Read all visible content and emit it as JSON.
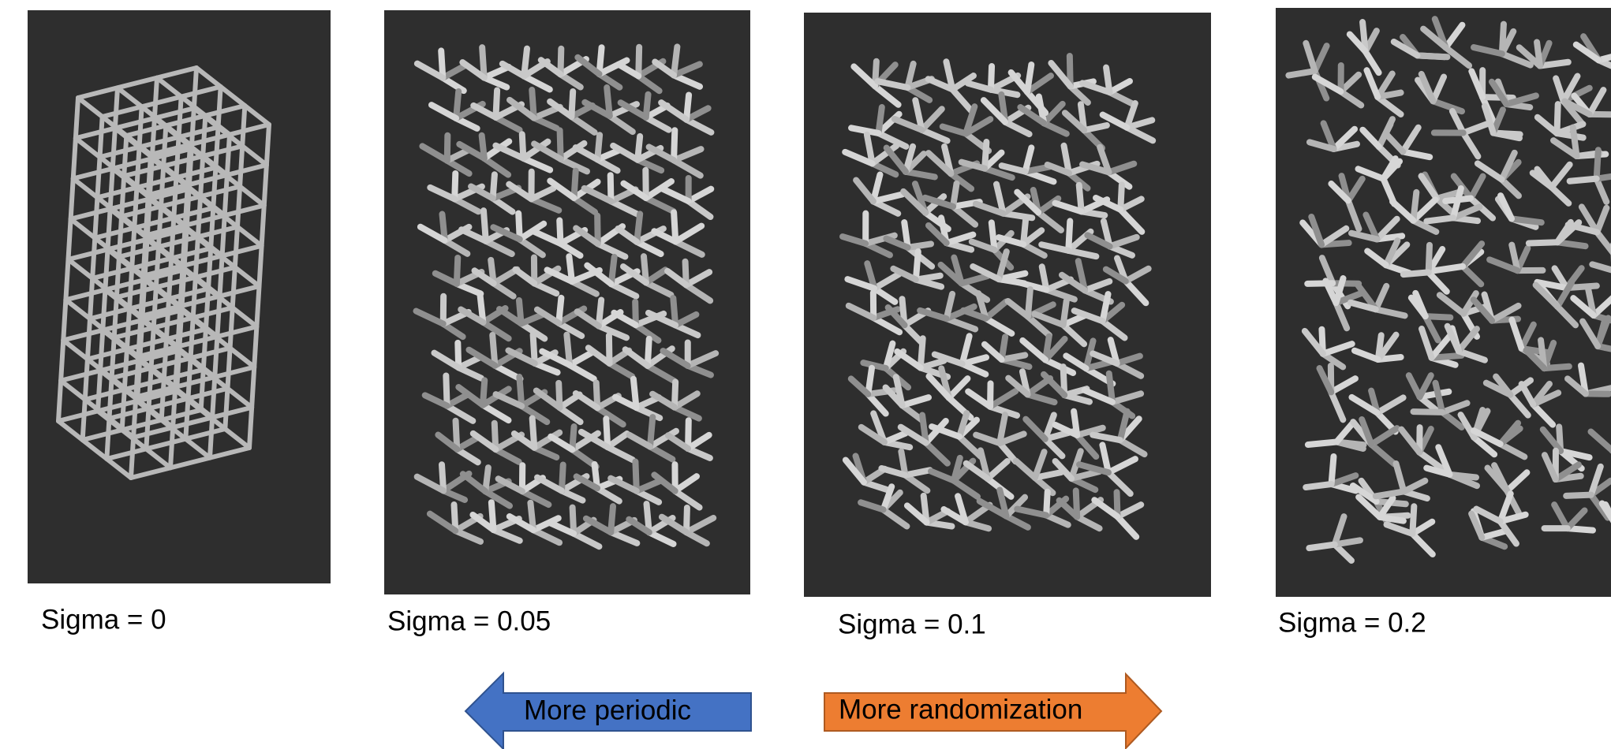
{
  "panels": [
    {
      "caption": "Sigma = 0"
    },
    {
      "caption": "Sigma = 0.05"
    },
    {
      "caption": "Sigma = 0.1"
    },
    {
      "caption": "Sigma = 0.2"
    }
  ],
  "arrows": {
    "left": "More periodic",
    "right": "More randomization"
  }
}
